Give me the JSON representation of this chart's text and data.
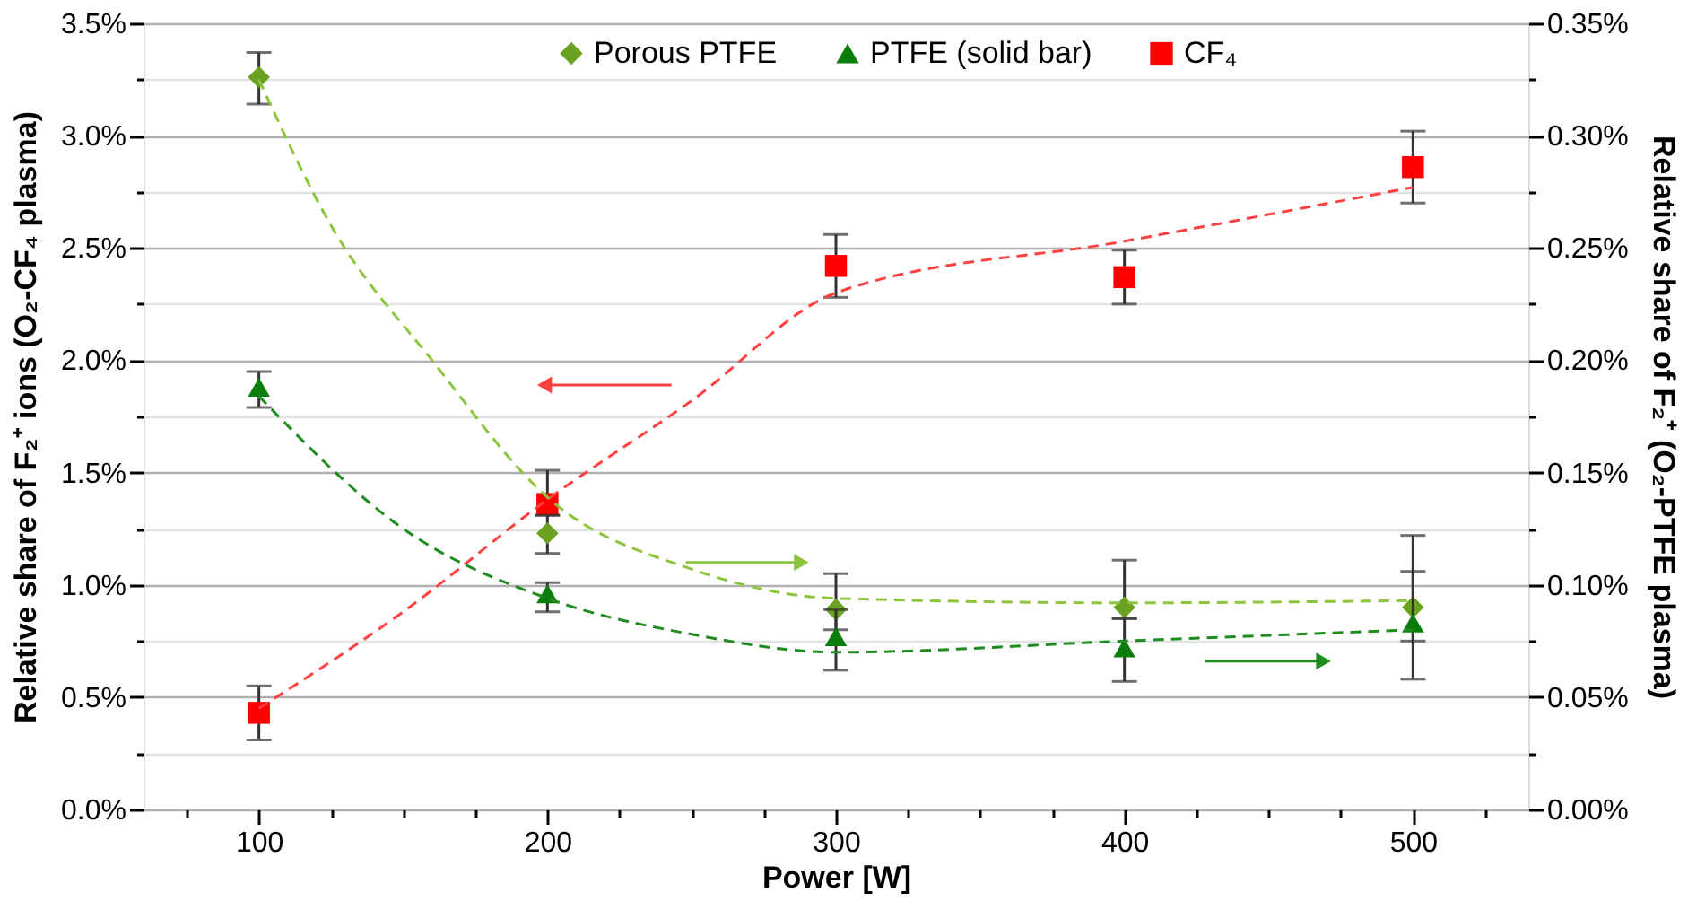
{
  "chart_data": {
    "type": "scatter",
    "xlabel": "Power [W]",
    "ylabel": "Relative share of F₂⁺ ions (O₂-CF₄ plasma)",
    "y2label": "Relative share of F₂⁺ (O₂-PTFE plasma)",
    "x": [
      100,
      200,
      300,
      400,
      500
    ],
    "xlim": [
      60,
      540
    ],
    "xticks": [
      {
        "value": 75,
        "label": null
      },
      100,
      {
        "value": 125,
        "label": null
      },
      {
        "value": 150,
        "label": null
      },
      {
        "value": 175,
        "label": null
      },
      200,
      {
        "value": 225,
        "label": null
      },
      {
        "value": 250,
        "label": null
      },
      {
        "value": 275,
        "label": null
      },
      300,
      {
        "value": 325,
        "label": null
      },
      {
        "value": 350,
        "label": null
      },
      {
        "value": 375,
        "label": null
      },
      400,
      {
        "value": 425,
        "label": null
      },
      {
        "value": 450,
        "label": null
      },
      {
        "value": 475,
        "label": null
      },
      500,
      {
        "value": 525,
        "label": null
      }
    ],
    "ylim": [
      0,
      3.5
    ],
    "yticks": [
      {
        "value": 0,
        "label": "0.0%"
      },
      {
        "value": 0.25,
        "label": null
      },
      {
        "value": 0.5,
        "label": "0.5%"
      },
      {
        "value": 0.75,
        "label": null
      },
      {
        "value": 1,
        "label": "1.0%"
      },
      {
        "value": 1.25,
        "label": null
      },
      {
        "value": 1.5,
        "label": "1.5%"
      },
      {
        "value": 1.75,
        "label": null
      },
      {
        "value": 2,
        "label": "2.0%"
      },
      {
        "value": 2.25,
        "label": null
      },
      {
        "value": 2.5,
        "label": "2.5%"
      },
      {
        "value": 2.75,
        "label": null
      },
      {
        "value": 3,
        "label": "3.0%"
      },
      {
        "value": 3.25,
        "label": null
      },
      {
        "value": 3.5,
        "label": "3.5%"
      }
    ],
    "y2lim": [
      0,
      0.35
    ],
    "y2ticks": [
      {
        "value": 0,
        "label": "0.00%"
      },
      {
        "value": 0.025,
        "label": null
      },
      {
        "value": 0.05,
        "label": "0.05%"
      },
      {
        "value": 0.075,
        "label": null
      },
      {
        "value": 0.1,
        "label": "0.10%"
      },
      {
        "value": 0.125,
        "label": null
      },
      {
        "value": 0.15,
        "label": "0.15%"
      },
      {
        "value": 0.175,
        "label": null
      },
      {
        "value": 0.2,
        "label": "0.20%"
      },
      {
        "value": 0.225,
        "label": null
      },
      {
        "value": 0.25,
        "label": "0.25%"
      },
      {
        "value": 0.275,
        "label": null
      },
      {
        "value": 0.3,
        "label": "0.30%"
      },
      {
        "value": 0.325,
        "label": null
      },
      {
        "value": 0.35,
        "label": "0.35%"
      }
    ],
    "grid": "y",
    "legend": "top",
    "series": [
      {
        "name": "Porous PTFE",
        "axis": "y2",
        "marker": "diamond",
        "color": "#6aa121",
        "values": [
          0.326,
          0.123,
          0.089,
          0.09,
          0.09
        ],
        "errors": [
          [
            0.314,
            0.337
          ],
          [
            0.114,
            0.131
          ],
          [
            0.08,
            0.105
          ],
          [
            0.085,
            0.111
          ],
          [
            0.075,
            0.122
          ]
        ]
      },
      {
        "name": "PTFE (solid bar)",
        "axis": "y2",
        "marker": "triangle",
        "color": "#0a7d0a",
        "values": [
          0.188,
          0.096,
          0.077,
          0.072,
          0.083
        ],
        "errors": [
          [
            0.179,
            0.195
          ],
          [
            0.088,
            0.101
          ],
          [
            0.062,
            0.089
          ],
          [
            0.057,
            0.085
          ],
          [
            0.058,
            0.106
          ]
        ]
      },
      {
        "name": "CF₄",
        "marker": "square",
        "color": "#ff0000",
        "values": [
          0.43,
          1.36,
          2.42,
          2.37,
          2.86
        ],
        "errors": [
          [
            0.31,
            0.55
          ],
          [
            1.31,
            1.51
          ],
          [
            2.28,
            2.56
          ],
          [
            2.25,
            2.49
          ],
          [
            2.7,
            3.02
          ]
        ]
      },
      {
        "type": "line",
        "axis": "y2",
        "color": "#8cc43c",
        "line_style": "dashed",
        "marker": "none",
        "x": [
          100,
          125,
          160,
          200,
          250,
          300,
          400,
          500
        ],
        "values": [
          0.325,
          0.26,
          0.2,
          0.139,
          0.107,
          0.094,
          0.092,
          0.093
        ]
      },
      {
        "type": "line",
        "axis": "y2",
        "color": "#1e8c1e",
        "line_style": "dashed",
        "marker": "none",
        "x": [
          100,
          150,
          200,
          250,
          300,
          400,
          500
        ],
        "values": [
          0.184,
          0.125,
          0.094,
          0.078,
          0.07,
          0.075,
          0.08
        ]
      },
      {
        "type": "line",
        "color": "#ff4040",
        "line_style": "dashed",
        "marker": "none",
        "x": [
          100,
          150,
          200,
          250,
          300,
          400,
          500
        ],
        "values": [
          0.45,
          0.88,
          1.38,
          1.82,
          2.3,
          2.53,
          2.77
        ]
      }
    ]
  }
}
